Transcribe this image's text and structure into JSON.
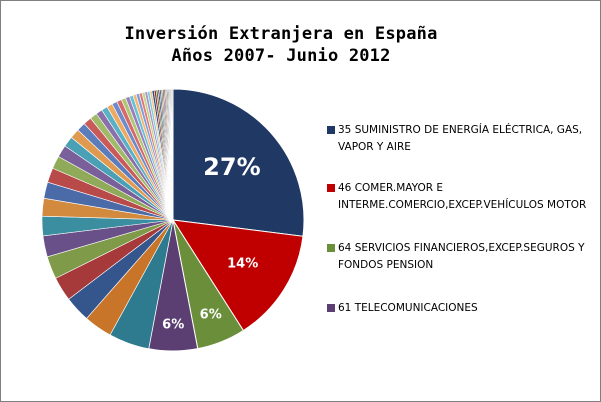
{
  "chart_data": {
    "type": "pie",
    "title_line1": "Inversión Extranjera en España",
    "title_line2": "Años 2007- Junio 2012",
    "slices": [
      {
        "label": "35 SUMINISTRO  DE ENERGÍA  ELÉCTRICA, GAS, VAPOR Y AIRE",
        "value": 27,
        "color": "#1f3864",
        "data_label": "27%"
      },
      {
        "label": "46 COMER.MAYOR E INTERME.COMERCIO,EXCEP.VEHÍCULOS MOTOR",
        "value": 14,
        "color": "#c00000",
        "data_label": "14%"
      },
      {
        "label": "64 SERVICIOS FINANCIEROS,EXCEP.SEGUROS  Y FONDOS PENSION",
        "value": 6,
        "color": "#6b8e3a",
        "data_label": "6%"
      },
      {
        "label": "61 TELECOMUNICACIONES",
        "value": 6,
        "color": "#5b3f73",
        "data_label": "6%"
      },
      {
        "label": "",
        "value": 5,
        "color": "#2e7b8f",
        "data_label": ""
      },
      {
        "label": "",
        "value": 3.5,
        "color": "#c8752a",
        "data_label": ""
      },
      {
        "label": "",
        "value": 3.2,
        "color": "#35558d",
        "data_label": ""
      },
      {
        "label": "",
        "value": 3.0,
        "color": "#a63a3a",
        "data_label": ""
      },
      {
        "label": "",
        "value": 2.8,
        "color": "#7f9a48",
        "data_label": ""
      },
      {
        "label": "",
        "value": 2.6,
        "color": "#6a5088",
        "data_label": ""
      },
      {
        "label": "",
        "value": 2.4,
        "color": "#3a8ea0",
        "data_label": ""
      },
      {
        "label": "",
        "value": 2.2,
        "color": "#d28a3e",
        "data_label": ""
      },
      {
        "label": "",
        "value": 2.0,
        "color": "#4a6aa8",
        "data_label": ""
      },
      {
        "label": "",
        "value": 1.8,
        "color": "#b84a4a",
        "data_label": ""
      },
      {
        "label": "",
        "value": 1.6,
        "color": "#8faa58",
        "data_label": ""
      },
      {
        "label": "",
        "value": 1.5,
        "color": "#7a609a",
        "data_label": ""
      },
      {
        "label": "",
        "value": 1.3,
        "color": "#4aa0b4",
        "data_label": ""
      },
      {
        "label": "",
        "value": 1.2,
        "color": "#e09a50",
        "data_label": ""
      },
      {
        "label": "",
        "value": 1.1,
        "color": "#5c7cbc",
        "data_label": ""
      },
      {
        "label": "",
        "value": 1.0,
        "color": "#c85a5a",
        "data_label": ""
      },
      {
        "label": "",
        "value": 0.9,
        "color": "#9fba68",
        "data_label": ""
      },
      {
        "label": "",
        "value": 0.8,
        "color": "#8a70aa",
        "data_label": ""
      },
      {
        "label": "",
        "value": 0.75,
        "color": "#5ab0c4",
        "data_label": ""
      },
      {
        "label": "",
        "value": 0.7,
        "color": "#eeaa62",
        "data_label": ""
      },
      {
        "label": "",
        "value": 0.65,
        "color": "#6e8ccc",
        "data_label": ""
      },
      {
        "label": "",
        "value": 0.6,
        "color": "#d66a6a",
        "data_label": ""
      },
      {
        "label": "",
        "value": 0.55,
        "color": "#afc878",
        "data_label": ""
      },
      {
        "label": "",
        "value": 0.5,
        "color": "#9a80ba",
        "data_label": ""
      },
      {
        "label": "",
        "value": 0.45,
        "color": "#6ac0d4",
        "data_label": ""
      },
      {
        "label": "",
        "value": 0.4,
        "color": "#f2b872",
        "data_label": ""
      },
      {
        "label": "",
        "value": 0.38,
        "color": "#7e9cdc",
        "data_label": ""
      },
      {
        "label": "",
        "value": 0.36,
        "color": "#e07a7a",
        "data_label": ""
      },
      {
        "label": "",
        "value": 0.34,
        "color": "#bfd688",
        "data_label": ""
      },
      {
        "label": "",
        "value": 0.32,
        "color": "#aa90ca",
        "data_label": ""
      },
      {
        "label": "",
        "value": 0.3,
        "color": "#7acce0",
        "data_label": ""
      },
      {
        "label": "",
        "value": 0.28,
        "color": "#f6c482",
        "data_label": ""
      },
      {
        "label": "",
        "value": 0.26,
        "color": "#2a4a7c",
        "data_label": ""
      },
      {
        "label": "",
        "value": 0.24,
        "color": "#902e2e",
        "data_label": ""
      },
      {
        "label": "",
        "value": 0.22,
        "color": "#5c7a30",
        "data_label": ""
      },
      {
        "label": "",
        "value": 0.2,
        "color": "#4c3266",
        "data_label": ""
      },
      {
        "label": "",
        "value": 0.19,
        "color": "#246a7c",
        "data_label": ""
      },
      {
        "label": "",
        "value": 0.18,
        "color": "#b06420",
        "data_label": ""
      },
      {
        "label": "",
        "value": 0.17,
        "color": "#3a5a96",
        "data_label": ""
      },
      {
        "label": "",
        "value": 0.16,
        "color": "#a03c3c",
        "data_label": ""
      },
      {
        "label": "",
        "value": 0.15,
        "color": "#78964a",
        "data_label": ""
      },
      {
        "label": "",
        "value": 0.14,
        "color": "#664a84",
        "data_label": ""
      },
      {
        "label": "",
        "value": 0.13,
        "color": "#3888a0",
        "data_label": ""
      },
      {
        "label": "",
        "value": 0.12,
        "color": "#cc8038",
        "data_label": ""
      },
      {
        "label": "",
        "value": 0.11,
        "color": "#4868a4",
        "data_label": ""
      },
      {
        "label": "",
        "value": 0.1,
        "color": "#b24c4c",
        "data_label": ""
      },
      {
        "label": "",
        "value": 0.1,
        "color": "#8aa656",
        "data_label": ""
      },
      {
        "label": "",
        "value": 0.1,
        "color": "#7660a0",
        "data_label": ""
      }
    ],
    "legend": [
      {
        "label": "35 SUMINISTRO  DE ENERGÍA  ELÉCTRICA, GAS, VAPOR Y AIRE",
        "color": "#1f3864"
      },
      {
        "label": "46 COMER.MAYOR E INTERME.COMERCIO,EXCEP.VEHÍCULOS MOTOR",
        "color": "#c00000"
      },
      {
        "label": "64 SERVICIOS FINANCIEROS,EXCEP.SEGUROS  Y FONDOS PENSION",
        "color": "#6b8e3a"
      },
      {
        "label": "61 TELECOMUNICACIONES",
        "color": "#5b3f73"
      }
    ],
    "legend_position": "right",
    "start_angle": "12 o'clock, clockwise"
  }
}
